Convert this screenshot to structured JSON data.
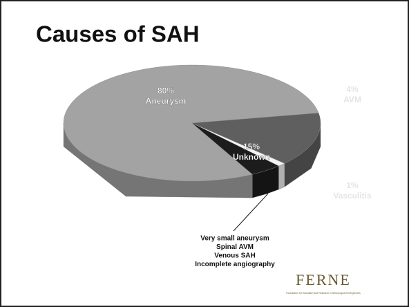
{
  "chart_data": {
    "type": "pie3d",
    "title": "Causes of SAH",
    "categories": [
      "Aneurysm",
      "Unknown",
      "Vasculitis",
      "AVM"
    ],
    "values": [
      80,
      15,
      1,
      4
    ],
    "value_labels": [
      "80%",
      "15%",
      "1%",
      "4%"
    ],
    "colors": [
      "#a3a3a3",
      "#5f5f5f",
      "#f4f4f4",
      "#1c1c1c"
    ],
    "annotation": [
      "Very small aneurysm",
      "Spinal AVM",
      "Venous SAH",
      "Incomplete angiography"
    ],
    "logo": {
      "name": "FERNE",
      "subtitle": "Foundation for Education and Research in Neurological Emergencies"
    }
  }
}
